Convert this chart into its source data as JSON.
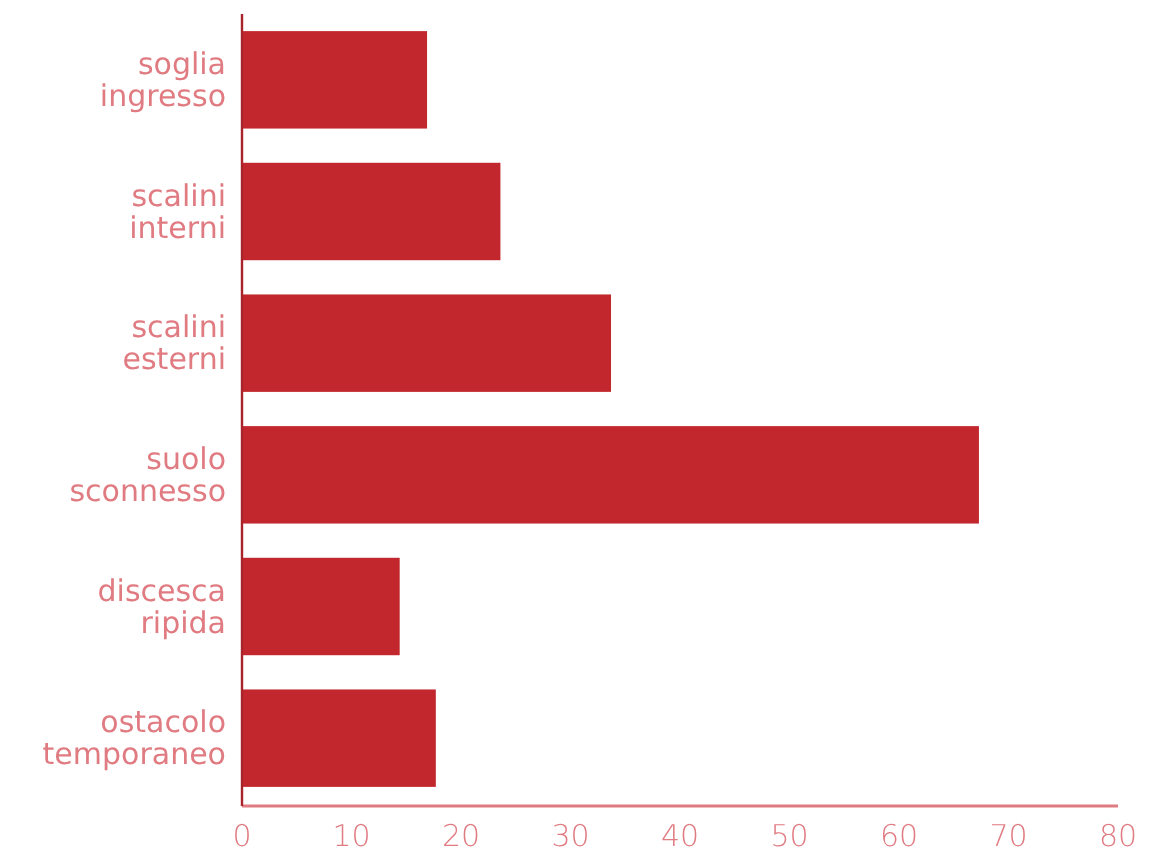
{
  "chart_data": {
    "type": "bar",
    "orientation": "horizontal",
    "categories": [
      "soglia\ningresso",
      "scalini\ninterni",
      "scalini\nesterni",
      "suolo\nsconnesso",
      "discesca\nripida",
      "ostacolo\ntemporaneo"
    ],
    "values": [
      16.9,
      23.6,
      33.7,
      67.3,
      14.4,
      17.7
    ],
    "color": "#c1272d",
    "xlim": [
      0,
      80
    ],
    "xticks": [
      0,
      10,
      20,
      30,
      40,
      50,
      60,
      70,
      80
    ],
    "grid": false
  }
}
